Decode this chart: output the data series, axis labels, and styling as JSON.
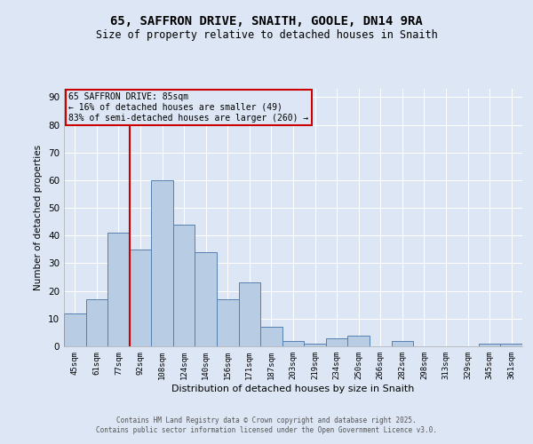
{
  "title_line1": "65, SAFFRON DRIVE, SNAITH, GOOLE, DN14 9RA",
  "title_line2": "Size of property relative to detached houses in Snaith",
  "xlabel": "Distribution of detached houses by size in Snaith",
  "ylabel": "Number of detached properties",
  "bar_labels": [
    "45sqm",
    "61sqm",
    "77sqm",
    "92sqm",
    "108sqm",
    "124sqm",
    "140sqm",
    "156sqm",
    "171sqm",
    "187sqm",
    "203sqm",
    "219sqm",
    "234sqm",
    "250sqm",
    "266sqm",
    "282sqm",
    "298sqm",
    "313sqm",
    "329sqm",
    "345sqm",
    "361sqm"
  ],
  "bar_values": [
    12,
    17,
    41,
    35,
    60,
    44,
    34,
    17,
    23,
    7,
    2,
    1,
    3,
    4,
    0,
    2,
    0,
    0,
    0,
    1,
    1
  ],
  "bar_color": "#b8cce4",
  "bar_edge_color": "#5580b0",
  "background_color": "#dce6f4",
  "grid_color": "#ffffff",
  "annotation_box_text": "65 SAFFRON DRIVE: 85sqm\n← 16% of detached houses are smaller (49)\n83% of semi-detached houses are larger (260) →",
  "annotation_box_edge_color": "#cc0000",
  "vline_x_label": "77sqm",
  "vline_color": "#cc0000",
  "ylim": [
    0,
    93
  ],
  "yticks": [
    0,
    10,
    20,
    30,
    40,
    50,
    60,
    70,
    80,
    90
  ],
  "footer_line1": "Contains HM Land Registry data © Crown copyright and database right 2025.",
  "footer_line2": "Contains public sector information licensed under the Open Government Licence v3.0."
}
